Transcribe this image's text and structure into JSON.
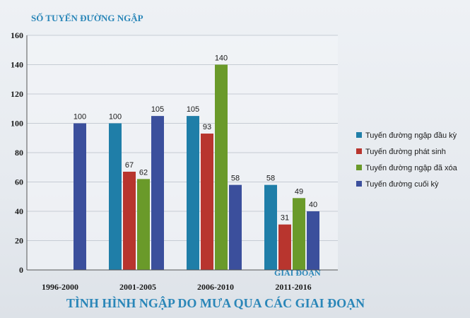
{
  "chart_data": {
    "type": "bar",
    "title": "TÌNH HÌNH NGẬP DO MƯA QUA CÁC GIAI ĐOẠN",
    "ylabel": "SỐ TUYẾN ĐƯỜNG NGẬP",
    "xlabel": "GIAI ĐOẠN",
    "ylim": [
      0,
      160
    ],
    "yticks": [
      0,
      20,
      40,
      60,
      80,
      100,
      120,
      140,
      160
    ],
    "grid": true,
    "legend": "right",
    "categories": [
      "1996-2000",
      "2001-2005",
      "2006-2010",
      "2011-2016"
    ],
    "series": [
      {
        "name": "Tuyến đường ngập đầu kỳ",
        "color": "#1f7ea8",
        "values": [
          null,
          100,
          105,
          58
        ]
      },
      {
        "name": "Tuyến đường phát sinh",
        "color": "#b8352e",
        "values": [
          null,
          67,
          93,
          31
        ]
      },
      {
        "name": "Tuyến đường ngập đã xóa",
        "color": "#6a9a2a",
        "values": [
          null,
          62,
          140,
          49
        ]
      },
      {
        "name": "Tuyến đường cuối kỳ",
        "color": "#3b4f9c",
        "values": [
          100,
          105,
          58,
          40
        ]
      }
    ]
  }
}
